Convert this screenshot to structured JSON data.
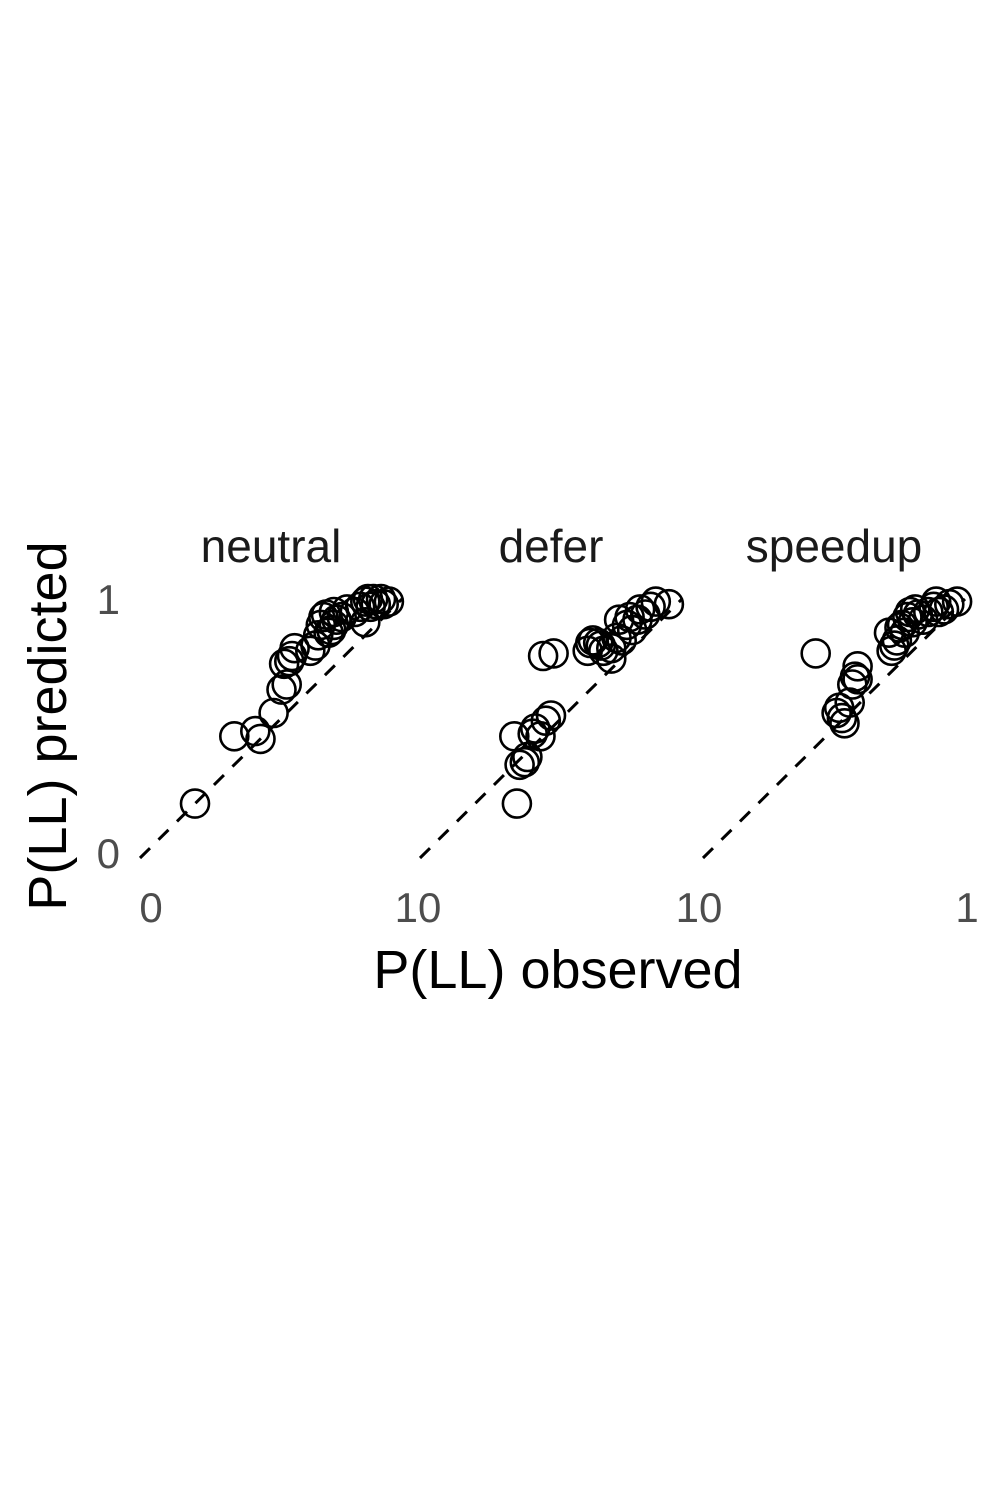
{
  "chart_data": {
    "type": "scatter",
    "xlabel": "P(LL) observed",
    "ylabel": "P(LL) predicted",
    "xlim": [
      0,
      1
    ],
    "ylim": [
      0,
      1
    ],
    "reference_line": "identity (dashed)",
    "grid": false,
    "marker": "open-circle",
    "y_ticks": [
      "0",
      "1"
    ],
    "x_ticks": [
      "0",
      "10",
      "10",
      "1"
    ],
    "facets": [
      {
        "title": "neutral",
        "points": [
          [
            0.21,
            0.21
          ],
          [
            0.36,
            0.47
          ],
          [
            0.44,
            0.49
          ],
          [
            0.46,
            0.46
          ],
          [
            0.51,
            0.56
          ],
          [
            0.54,
            0.65
          ],
          [
            0.56,
            0.67
          ],
          [
            0.55,
            0.75
          ],
          [
            0.57,
            0.76
          ],
          [
            0.58,
            0.78
          ],
          [
            0.59,
            0.81
          ],
          [
            0.65,
            0.8
          ],
          [
            0.67,
            0.82
          ],
          [
            0.68,
            0.86
          ],
          [
            0.69,
            0.9
          ],
          [
            0.7,
            0.93
          ],
          [
            0.71,
            0.94
          ],
          [
            0.72,
            0.87
          ],
          [
            0.73,
            0.88
          ],
          [
            0.74,
            0.9
          ],
          [
            0.74,
            0.95
          ],
          [
            0.75,
            0.92
          ],
          [
            0.77,
            0.93
          ],
          [
            0.79,
            0.96
          ],
          [
            0.82,
            0.95
          ],
          [
            0.84,
            0.97
          ],
          [
            0.86,
            0.91
          ],
          [
            0.86,
            0.99
          ],
          [
            0.87,
            1.0
          ],
          [
            0.88,
            0.97
          ],
          [
            0.89,
            1.0
          ],
          [
            0.9,
            0.98
          ],
          [
            0.92,
            1.0
          ],
          [
            0.93,
            0.98
          ],
          [
            0.95,
            0.99
          ]
        ]
      },
      {
        "title": "defer",
        "points": [
          [
            0.37,
            0.21
          ],
          [
            0.36,
            0.47
          ],
          [
            0.38,
            0.36
          ],
          [
            0.4,
            0.37
          ],
          [
            0.41,
            0.39
          ],
          [
            0.43,
            0.48
          ],
          [
            0.44,
            0.5
          ],
          [
            0.46,
            0.47
          ],
          [
            0.48,
            0.53
          ],
          [
            0.5,
            0.55
          ],
          [
            0.47,
            0.78
          ],
          [
            0.51,
            0.79
          ],
          [
            0.64,
            0.8
          ],
          [
            0.65,
            0.83
          ],
          [
            0.66,
            0.84
          ],
          [
            0.68,
            0.83
          ],
          [
            0.69,
            0.82
          ],
          [
            0.7,
            0.8
          ],
          [
            0.73,
            0.81
          ],
          [
            0.73,
            0.77
          ],
          [
            0.75,
            0.85
          ],
          [
            0.76,
            0.92
          ],
          [
            0.77,
            0.84
          ],
          [
            0.79,
            0.9
          ],
          [
            0.8,
            0.93
          ],
          [
            0.81,
            0.88
          ],
          [
            0.83,
            0.92
          ],
          [
            0.84,
            0.96
          ],
          [
            0.86,
            0.94
          ],
          [
            0.88,
            0.97
          ],
          [
            0.9,
            0.99
          ],
          [
            0.95,
            0.98
          ]
        ]
      },
      {
        "title": "speedup",
        "points": [
          [
            0.43,
            0.79
          ],
          [
            0.51,
            0.56
          ],
          [
            0.52,
            0.58
          ],
          [
            0.53,
            0.54
          ],
          [
            0.54,
            0.52
          ],
          [
            0.56,
            0.6
          ],
          [
            0.57,
            0.67
          ],
          [
            0.58,
            0.7
          ],
          [
            0.59,
            0.69
          ],
          [
            0.59,
            0.74
          ],
          [
            0.71,
            0.87
          ],
          [
            0.72,
            0.8
          ],
          [
            0.73,
            0.82
          ],
          [
            0.74,
            0.84
          ],
          [
            0.75,
            0.89
          ],
          [
            0.76,
            0.9
          ],
          [
            0.77,
            0.87
          ],
          [
            0.78,
            0.93
          ],
          [
            0.79,
            0.95
          ],
          [
            0.8,
            0.91
          ],
          [
            0.81,
            0.96
          ],
          [
            0.82,
            0.94
          ],
          [
            0.84,
            0.92
          ],
          [
            0.86,
            0.95
          ],
          [
            0.88,
            0.97
          ],
          [
            0.89,
            0.99
          ],
          [
            0.9,
            0.95
          ],
          [
            0.92,
            0.96
          ],
          [
            0.94,
            0.98
          ],
          [
            0.97,
            0.99
          ]
        ]
      }
    ]
  }
}
